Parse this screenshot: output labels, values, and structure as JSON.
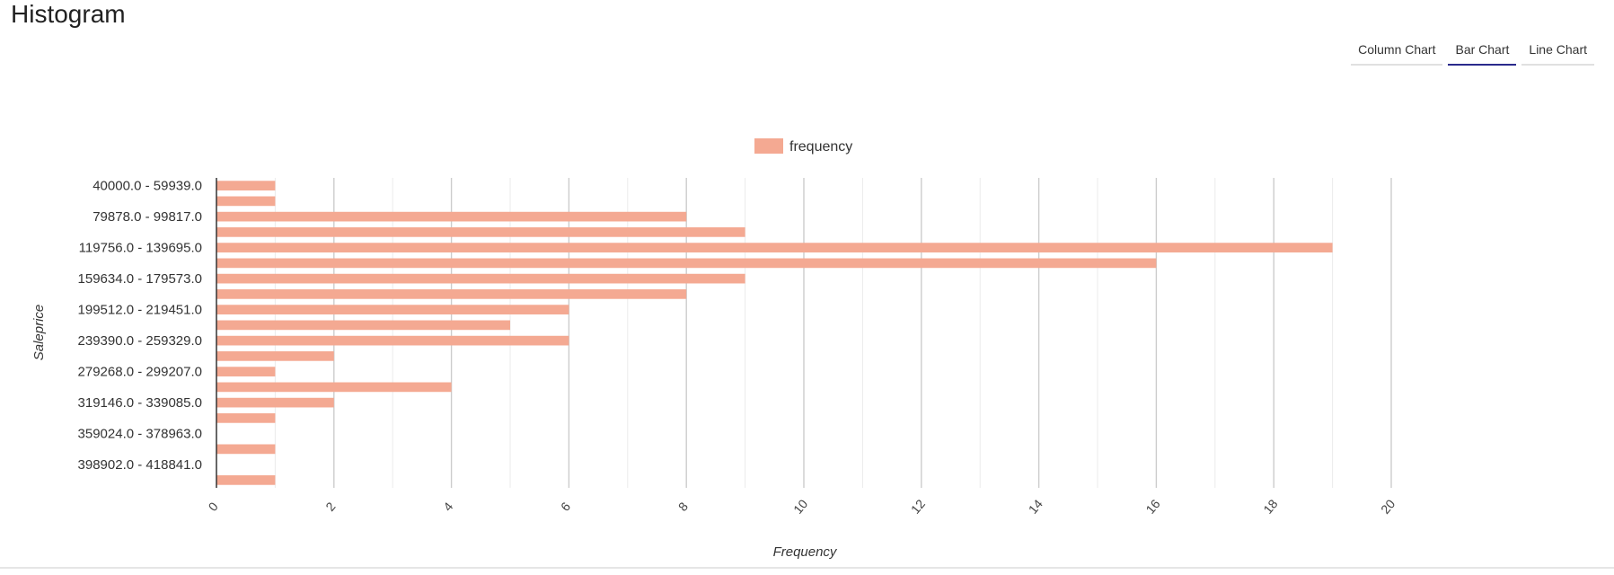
{
  "page": {
    "title": "Histogram"
  },
  "tabs": [
    {
      "label": "Column Chart",
      "active": false
    },
    {
      "label": "Bar Chart",
      "active": true
    },
    {
      "label": "Line Chart",
      "active": false
    }
  ],
  "colors": {
    "bar": "#f4a992",
    "active_tab": "#2a2a8c",
    "major_grid": "#cccccc",
    "minor_grid": "#ebebeb",
    "axis": "#333333"
  },
  "chart_data": {
    "type": "bar",
    "orientation": "horizontal",
    "legend": {
      "position": "top",
      "entries": [
        "frequency"
      ]
    },
    "xlabel": "Frequency",
    "ylabel": "Saleprice",
    "xlim": [
      0,
      20
    ],
    "x_ticks": [
      "0",
      "2",
      "4",
      "6",
      "8",
      "10",
      "12",
      "14",
      "16",
      "18",
      "20"
    ],
    "grid": true,
    "categories": [
      "40000.0 - 59939.0",
      "",
      "79878.0 - 99817.0",
      "",
      "119756.0 - 139695.0",
      "",
      "159634.0 - 179573.0",
      "",
      "199512.0 - 219451.0",
      "",
      "239390.0 - 259329.0",
      "",
      "279268.0 - 299207.0",
      "",
      "319146.0 - 339085.0",
      "",
      "359024.0 - 378963.0",
      "",
      "398902.0 - 418841.0",
      ""
    ],
    "series": [
      {
        "name": "frequency",
        "values": [
          1,
          1,
          8,
          9,
          19,
          16,
          9,
          8,
          6,
          5,
          6,
          2,
          1,
          4,
          2,
          1,
          0,
          1,
          0,
          1
        ]
      }
    ]
  }
}
